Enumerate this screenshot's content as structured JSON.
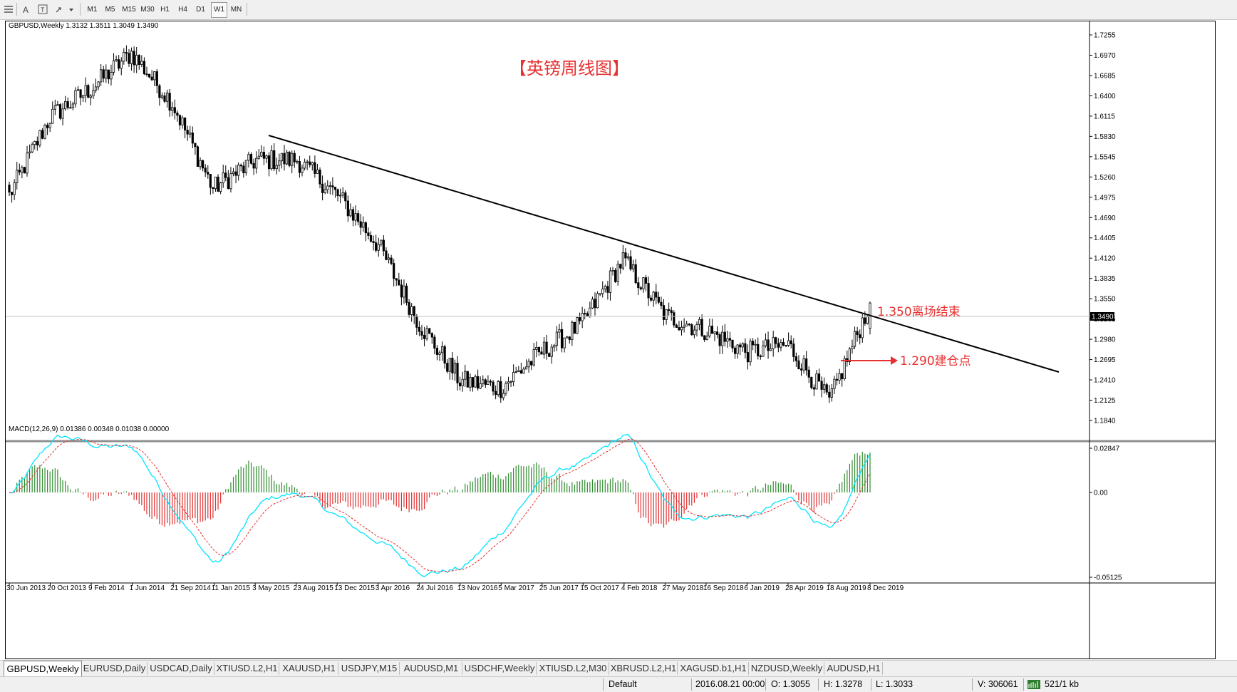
{
  "toolbar": {
    "timeframes": [
      "M1",
      "M5",
      "M15",
      "M30",
      "H1",
      "H4",
      "D1",
      "W1",
      "MN"
    ],
    "active_timeframe": "W1"
  },
  "chart": {
    "symbol_label": "GBPUSD,Weekly  1.3132 1.3511 1.3049 1.3490",
    "annotation_title": "【英镑周线图】",
    "annotation_exit": "1.350离场结束",
    "annotation_entry": "1.290建仓点",
    "current_price": "1.3490",
    "price_ticks": [
      "1.7255",
      "1.6970",
      "1.6685",
      "1.6400",
      "1.6115",
      "1.5830",
      "1.5545",
      "1.5260",
      "1.4975",
      "1.4690",
      "1.4405",
      "1.4120",
      "1.3835",
      "1.3550",
      "1.3265",
      "1.2980",
      "1.2695",
      "1.2410",
      "1.2125",
      "1.1840"
    ],
    "date_labels": [
      "30 Jun 2013",
      "20 Oct 2013",
      "9 Feb 2014",
      "1 Jun 2014",
      "21 Sep 2014",
      "11 Jan 2015",
      "3 May 2015",
      "23 Aug 2015",
      "13 Dec 2015",
      "3 Apr 2016",
      "24 Jul 2016",
      "13 Nov 2016",
      "5 Mar 2017",
      "25 Jun 2017",
      "15 Oct 2017",
      "4 Feb 2018",
      "27 May 2018",
      "16 Sep 2018",
      "6 Jan 2019",
      "28 Apr 2019",
      "18 Aug 2019",
      "8 Dec 2019"
    ],
    "colors": {
      "bull": "#000000",
      "bear": "#000000",
      "trendline": "#000000",
      "annotation": "#e83030",
      "arrow": "#e83030",
      "price_line": "#c0c0c0"
    }
  },
  "macd": {
    "label": "MACD(12,26,9) 0.01386 0.00348 0.01038 0.00000",
    "ticks": [
      "0.02847",
      "0.00",
      "-0.05125"
    ],
    "colors": {
      "hist_pos": "#2e8b2e",
      "hist_neg": "#e03030",
      "macd": "#00e5ff",
      "signal": "#e03030"
    }
  },
  "tabs": [
    "GBPUSD,Weekly",
    "EURUSD,Daily",
    "USDCAD,Daily",
    "XTIUSD.L2,H1",
    "XAUUSD,H1",
    "USDJPY,M15",
    "AUDUSD,M1",
    "USDCHF,Weekly",
    "XTIUSD.L2,M30",
    "XBRUSD.L2,H1",
    "XAGUSD.b1,H1",
    "NZDUSD,Weekly",
    "AUDUSD,H1"
  ],
  "status": {
    "profile": "Default",
    "datetime": "2016.08.21 00:00",
    "open": "O: 1.3055",
    "high": "H: 1.3278",
    "low": "L: 1.3033",
    "volume": "V: 306061",
    "traffic": "521/1 kb"
  },
  "chart_data": {
    "type": "candlestick",
    "symbol": "GBPUSD",
    "timeframe": "Weekly",
    "x_start": "30 Jun 2013",
    "x_end": "8 Dec 2019",
    "ylim": [
      1.184,
      1.7255
    ],
    "last_bar": {
      "open": 1.3132,
      "high": 1.3511,
      "low": 1.3049,
      "close": 1.349
    },
    "anchors": [
      [
        "30 Jun 2013",
        1.5
      ],
      [
        "20 Oct 2013",
        1.61
      ],
      [
        "9 Feb 2014",
        1.65
      ],
      [
        "1 Jun 2014",
        1.7
      ],
      [
        "21 Sep 2014",
        1.63
      ],
      [
        "11 Jan 2015",
        1.51
      ],
      [
        "3 May 2015",
        1.55
      ],
      [
        "23 Aug 2015",
        1.55
      ],
      [
        "13 Dec 2015",
        1.5
      ],
      [
        "3 Apr 2016",
        1.43
      ],
      [
        "24 Jul 2016",
        1.32
      ],
      [
        "13 Nov 2016",
        1.24
      ],
      [
        "5 Mar 2017",
        1.23
      ],
      [
        "25 Jun 2017",
        1.28
      ],
      [
        "15 Oct 2017",
        1.32
      ],
      [
        "4 Feb 2018",
        1.41
      ],
      [
        "27 May 2018",
        1.33
      ],
      [
        "16 Sep 2018",
        1.31
      ],
      [
        "6 Jan 2019",
        1.28
      ],
      [
        "28 Apr 2019",
        1.29
      ],
      [
        "18 Aug 2019",
        1.21
      ],
      [
        "8 Dec 2019",
        1.349
      ]
    ],
    "trendline": [
      [
        "3 May 2015",
        1.59
      ],
      [
        "8 Dec 2019",
        1.349
      ]
    ],
    "macd_ylim": [
      -0.05125,
      0.02847
    ]
  }
}
